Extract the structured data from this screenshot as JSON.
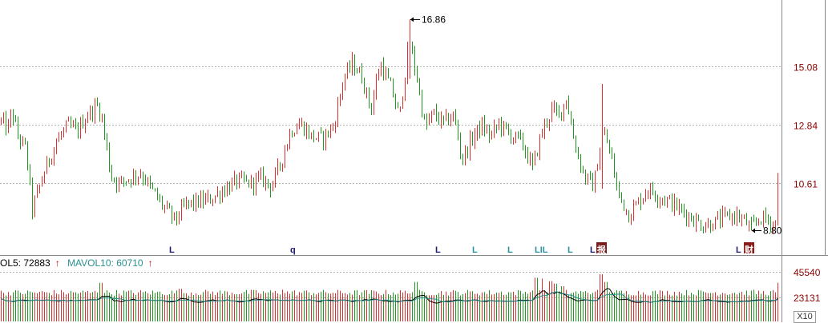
{
  "chart_data": {
    "type": "candlestick",
    "price_axis_ticks": [
      "15.08",
      "12.84",
      "10.61"
    ],
    "price_ticks_values": [
      15.08,
      12.84,
      10.61
    ],
    "ylim": [
      7.9,
      17.3
    ],
    "high_annotation": "16.86",
    "high_value": 16.86,
    "low_annotation": "8.80",
    "low_value": 8.8,
    "colors": {
      "up": "#e03030",
      "down": "#1f9a1f",
      "ma5": "#000000",
      "ma10": "#2a8f8f",
      "grid": "#b0b0b0",
      "axis_text": "#8b0000"
    },
    "path": [
      [
        0,
        13.0
      ],
      [
        10,
        12.7
      ],
      [
        14,
        13.4
      ],
      [
        22,
        12.4
      ],
      [
        32,
        11.9
      ],
      [
        40,
        9.6
      ],
      [
        48,
        10.4
      ],
      [
        58,
        11.3
      ],
      [
        70,
        12.2
      ],
      [
        84,
        12.8
      ],
      [
        96,
        12.6
      ],
      [
        108,
        13.2
      ],
      [
        122,
        13.6
      ],
      [
        128,
        12.9
      ],
      [
        138,
        10.9
      ],
      [
        148,
        10.6
      ],
      [
        160,
        10.8
      ],
      [
        176,
        11.0
      ],
      [
        188,
        10.4
      ],
      [
        204,
        9.7
      ],
      [
        218,
        9.2
      ],
      [
        232,
        9.8
      ],
      [
        248,
        9.9
      ],
      [
        262,
        10.0
      ],
      [
        280,
        10.4
      ],
      [
        296,
        10.7
      ],
      [
        312,
        10.6
      ],
      [
        326,
        10.8
      ],
      [
        338,
        10.5
      ],
      [
        350,
        11.4
      ],
      [
        362,
        12.6
      ],
      [
        374,
        12.9
      ],
      [
        388,
        12.4
      ],
      [
        402,
        12.3
      ],
      [
        416,
        12.8
      ],
      [
        428,
        14.6
      ],
      [
        440,
        15.2
      ],
      [
        452,
        14.6
      ],
      [
        462,
        13.4
      ],
      [
        474,
        15.2
      ],
      [
        488,
        14.2
      ],
      [
        498,
        13.1
      ],
      [
        510,
        16.1
      ],
      [
        520,
        14.6
      ],
      [
        530,
        12.7
      ],
      [
        540,
        13.3
      ],
      [
        552,
        12.9
      ],
      [
        566,
        13.2
      ],
      [
        576,
        11.5
      ],
      [
        590,
        12.4
      ],
      [
        600,
        12.8
      ],
      [
        612,
        12.4
      ],
      [
        622,
        12.9
      ],
      [
        634,
        12.5
      ],
      [
        650,
        12.2
      ],
      [
        664,
        11.2
      ],
      [
        676,
        12.6
      ],
      [
        688,
        13.4
      ],
      [
        698,
        13.2
      ],
      [
        706,
        13.9
      ],
      [
        716,
        12.2
      ],
      [
        728,
        10.9
      ],
      [
        740,
        10.5
      ],
      [
        752,
        12.6
      ],
      [
        760,
        11.9
      ],
      [
        770,
        10.3
      ],
      [
        784,
        9.4
      ],
      [
        796,
        9.9
      ],
      [
        808,
        10.4
      ],
      [
        822,
        10.1
      ],
      [
        836,
        9.9
      ],
      [
        848,
        9.6
      ],
      [
        862,
        9.3
      ],
      [
        876,
        9.0
      ],
      [
        890,
        9.1
      ],
      [
        904,
        9.3
      ],
      [
        918,
        9.4
      ],
      [
        930,
        9.1
      ],
      [
        938,
        8.9
      ],
      [
        948,
        9.3
      ],
      [
        958,
        9.2
      ],
      [
        968,
        9.0
      ],
      [
        972,
        9.4
      ]
    ],
    "volume": {
      "header": {
        "ma5_label": "OL5: 72883",
        "ma10_label": "MAVOL10: 60710",
        "arrow": "↑"
      },
      "axis_ticks": [
        "45540",
        "23131"
      ],
      "multiplier": "X10",
      "ylim": [
        0,
        60000
      ],
      "spikes": [
        [
          125,
          38000
        ],
        [
          224,
          24000
        ],
        [
          352,
          22000
        ],
        [
          518,
          40000
        ],
        [
          668,
          50000
        ],
        [
          676,
          48000
        ],
        [
          686,
          42000
        ],
        [
          692,
          36000
        ],
        [
          702,
          30000
        ],
        [
          750,
          58000
        ],
        [
          756,
          40000
        ],
        [
          972,
          38000
        ]
      ]
    },
    "markers": [
      {
        "label": "L",
        "color": "#1a1a6e"
      },
      {
        "label": "q",
        "color": "#1a1a6e"
      },
      {
        "label": "L",
        "color": "#1a1a6e"
      },
      {
        "label": "L",
        "color": "#2a8fa0"
      },
      {
        "label": "L",
        "color": "#2a8fa0"
      },
      {
        "label": "LIL",
        "color": "#2a8fa0"
      },
      {
        "label": "L",
        "color": "#2a8fa0"
      },
      {
        "label": "L",
        "color": "#1a1a6e"
      },
      {
        "label": "报",
        "color": "#ffffff",
        "bg": "#7a1a1a"
      },
      {
        "label": "L",
        "color": "#1a1a6e"
      },
      {
        "label": "财",
        "color": "#ffffff",
        "bg": "#8b1a1a"
      }
    ]
  }
}
